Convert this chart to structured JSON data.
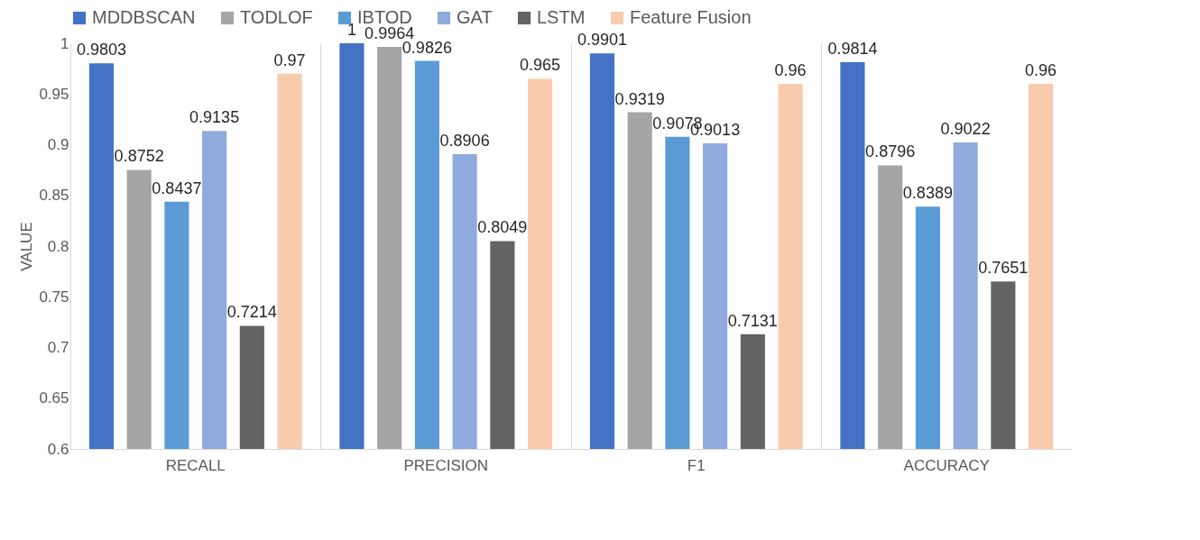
{
  "chart_data": {
    "type": "bar",
    "ylabel": "VALUE",
    "categories": [
      "RECALL",
      "PRECISION",
      "F1",
      "ACCURACY"
    ],
    "series": [
      {
        "name": "MDDBSCAN",
        "color": "#4472c4",
        "values": [
          0.9803,
          1,
          0.9901,
          0.9814
        ]
      },
      {
        "name": "TODLOF",
        "color": "#a5a5a5",
        "values": [
          0.8752,
          0.9964,
          0.9319,
          0.8796
        ]
      },
      {
        "name": "IBTOD",
        "color": "#5b9bd5",
        "values": [
          0.8437,
          0.9826,
          0.9078,
          0.8389
        ]
      },
      {
        "name": "GAT",
        "color": "#8faadc",
        "values": [
          0.9135,
          0.8906,
          0.9013,
          0.9022
        ]
      },
      {
        "name": "LSTM",
        "color": "#636363",
        "values": [
          0.7214,
          0.8049,
          0.7131,
          0.7651
        ]
      },
      {
        "name": "Feature Fusion",
        "color": "#f8cbad",
        "values": [
          0.97,
          0.965,
          0.96,
          0.96
        ]
      }
    ],
    "ylim": [
      0.6,
      1
    ],
    "yticks": [
      0.6,
      0.65,
      0.7,
      0.75,
      0.8,
      0.85,
      0.9,
      0.95,
      1
    ],
    "grid": "x",
    "legend": "top",
    "data_labels": true
  }
}
